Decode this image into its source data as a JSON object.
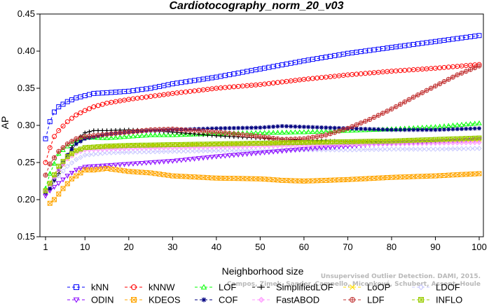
{
  "chart_data": {
    "type": "line",
    "title": "Cardiotocography_norm_20_v03",
    "xlabel": "Neighborhood size",
    "ylabel": "AP",
    "xlim": [
      1,
      100
    ],
    "ylim": [
      0.15,
      0.45
    ],
    "xticks": [
      1,
      10,
      20,
      30,
      40,
      50,
      60,
      70,
      80,
      90,
      100
    ],
    "yticks": [
      "0.15",
      "0.20",
      "0.25",
      "0.30",
      "0.35",
      "0.40",
      "0.45"
    ],
    "grid": false,
    "legend_position": "bottom",
    "series": [
      {
        "name": "kNN",
        "color": "#0000ff",
        "marker": "square",
        "points": [
          [
            1,
            0.282
          ],
          [
            2,
            0.305
          ],
          [
            3,
            0.318
          ],
          [
            4,
            0.325
          ],
          [
            6,
            0.332
          ],
          [
            8,
            0.337
          ],
          [
            10,
            0.34
          ],
          [
            12,
            0.343
          ],
          [
            15,
            0.344
          ],
          [
            20,
            0.346
          ],
          [
            25,
            0.35
          ],
          [
            30,
            0.356
          ],
          [
            40,
            0.365
          ],
          [
            50,
            0.376
          ],
          [
            60,
            0.387
          ],
          [
            70,
            0.397
          ],
          [
            80,
            0.405
          ],
          [
            90,
            0.413
          ],
          [
            100,
            0.421
          ]
        ]
      },
      {
        "name": "kNNW",
        "color": "#ff0000",
        "marker": "circle",
        "points": [
          [
            1,
            0.25
          ],
          [
            2,
            0.27
          ],
          [
            3,
            0.285
          ],
          [
            4,
            0.293
          ],
          [
            6,
            0.305
          ],
          [
            8,
            0.314
          ],
          [
            10,
            0.32
          ],
          [
            12,
            0.325
          ],
          [
            15,
            0.33
          ],
          [
            20,
            0.335
          ],
          [
            25,
            0.339
          ],
          [
            30,
            0.343
          ],
          [
            40,
            0.35
          ],
          [
            50,
            0.355
          ],
          [
            60,
            0.362
          ],
          [
            70,
            0.368
          ],
          [
            80,
            0.373
          ],
          [
            90,
            0.377
          ],
          [
            100,
            0.382
          ]
        ]
      },
      {
        "name": "LOF",
        "color": "#00ff00",
        "marker": "triangle-up",
        "points": [
          [
            1,
            0.215
          ],
          [
            2,
            0.235
          ],
          [
            4,
            0.262
          ],
          [
            6,
            0.272
          ],
          [
            8,
            0.279
          ],
          [
            10,
            0.284
          ],
          [
            15,
            0.283
          ],
          [
            20,
            0.285
          ],
          [
            25,
            0.287
          ],
          [
            30,
            0.287
          ],
          [
            40,
            0.289
          ],
          [
            50,
            0.29
          ],
          [
            60,
            0.291
          ],
          [
            70,
            0.293
          ],
          [
            80,
            0.295
          ],
          [
            90,
            0.298
          ],
          [
            100,
            0.303
          ]
        ]
      },
      {
        "name": "SimplifiedLOF",
        "color": "#000000",
        "marker": "plus",
        "points": [
          [
            1,
            0.208
          ],
          [
            2,
            0.215
          ],
          [
            4,
            0.235
          ],
          [
            6,
            0.26
          ],
          [
            8,
            0.28
          ],
          [
            10,
            0.29
          ],
          [
            12,
            0.293
          ],
          [
            15,
            0.293
          ],
          [
            20,
            0.294
          ],
          [
            25,
            0.293
          ],
          [
            30,
            0.291
          ],
          [
            40,
            0.286
          ],
          [
            50,
            0.283
          ],
          [
            60,
            0.28
          ],
          [
            70,
            0.278
          ],
          [
            80,
            0.278
          ],
          [
            90,
            0.279
          ],
          [
            100,
            0.282
          ]
        ]
      },
      {
        "name": "LoOP",
        "color": "#ffdd00",
        "marker": "x",
        "points": [
          [
            1,
            0.21
          ],
          [
            2,
            0.22
          ],
          [
            4,
            0.24
          ],
          [
            6,
            0.255
          ],
          [
            8,
            0.265
          ],
          [
            10,
            0.27
          ],
          [
            15,
            0.271
          ],
          [
            20,
            0.272
          ],
          [
            30,
            0.273
          ],
          [
            40,
            0.274
          ],
          [
            50,
            0.275
          ],
          [
            60,
            0.276
          ],
          [
            70,
            0.277
          ],
          [
            80,
            0.278
          ],
          [
            90,
            0.279
          ],
          [
            100,
            0.281
          ]
        ]
      },
      {
        "name": "LDOF",
        "color": "#c8c8ff",
        "marker": "diamond",
        "points": [
          [
            1,
            0.21
          ],
          [
            2,
            0.218
          ],
          [
            4,
            0.232
          ],
          [
            6,
            0.245
          ],
          [
            8,
            0.254
          ],
          [
            10,
            0.26
          ],
          [
            15,
            0.263
          ],
          [
            20,
            0.264
          ],
          [
            30,
            0.265
          ],
          [
            40,
            0.266
          ],
          [
            50,
            0.266
          ],
          [
            60,
            0.267
          ],
          [
            70,
            0.267
          ],
          [
            80,
            0.268
          ],
          [
            90,
            0.268
          ],
          [
            100,
            0.269
          ]
        ]
      },
      {
        "name": "ODIN",
        "color": "#8800ff",
        "marker": "triangle-down",
        "points": [
          [
            1,
            0.205
          ],
          [
            2,
            0.212
          ],
          [
            4,
            0.222
          ],
          [
            6,
            0.232
          ],
          [
            8,
            0.24
          ],
          [
            10,
            0.244
          ],
          [
            15,
            0.246
          ],
          [
            20,
            0.248
          ],
          [
            30,
            0.252
          ],
          [
            40,
            0.258
          ],
          [
            50,
            0.263
          ],
          [
            60,
            0.268
          ],
          [
            70,
            0.272
          ],
          [
            80,
            0.276
          ],
          [
            90,
            0.278
          ],
          [
            100,
            0.281
          ]
        ]
      },
      {
        "name": "KDEOS",
        "color": "#ffa500",
        "marker": "square-x",
        "points": [
          [
            2,
            0.195
          ],
          [
            3,
            0.2
          ],
          [
            5,
            0.215
          ],
          [
            7,
            0.228
          ],
          [
            9,
            0.236
          ],
          [
            10,
            0.24
          ],
          [
            12,
            0.24
          ],
          [
            15,
            0.242
          ],
          [
            20,
            0.238
          ],
          [
            25,
            0.236
          ],
          [
            30,
            0.232
          ],
          [
            40,
            0.229
          ],
          [
            50,
            0.228
          ],
          [
            55,
            0.226
          ],
          [
            60,
            0.225
          ],
          [
            70,
            0.227
          ],
          [
            80,
            0.23
          ],
          [
            90,
            0.232
          ],
          [
            100,
            0.235
          ]
        ]
      },
      {
        "name": "COF",
        "color": "#000080",
        "marker": "star",
        "points": [
          [
            1,
            0.21
          ],
          [
            2,
            0.215
          ],
          [
            4,
            0.24
          ],
          [
            6,
            0.26
          ],
          [
            8,
            0.275
          ],
          [
            10,
            0.282
          ],
          [
            15,
            0.288
          ],
          [
            20,
            0.291
          ],
          [
            25,
            0.293
          ],
          [
            30,
            0.294
          ],
          [
            40,
            0.296
          ],
          [
            50,
            0.297
          ],
          [
            55,
            0.299
          ],
          [
            60,
            0.298
          ],
          [
            70,
            0.296
          ],
          [
            80,
            0.294
          ],
          [
            90,
            0.294
          ],
          [
            100,
            0.296
          ]
        ]
      },
      {
        "name": "FastABOD",
        "color": "#ff99ff",
        "marker": "diamond-filled",
        "points": [
          [
            1,
            0.212
          ],
          [
            2,
            0.22
          ],
          [
            4,
            0.24
          ],
          [
            6,
            0.255
          ],
          [
            8,
            0.263
          ],
          [
            10,
            0.267
          ],
          [
            15,
            0.268
          ],
          [
            20,
            0.269
          ],
          [
            30,
            0.27
          ],
          [
            40,
            0.271
          ],
          [
            50,
            0.272
          ],
          [
            60,
            0.273
          ],
          [
            70,
            0.274
          ],
          [
            80,
            0.275
          ],
          [
            90,
            0.276
          ],
          [
            100,
            0.277
          ]
        ]
      },
      {
        "name": "LDF",
        "color": "#c03030",
        "marker": "circle-plus",
        "points": [
          [
            1,
            0.233
          ],
          [
            2,
            0.248
          ],
          [
            4,
            0.265
          ],
          [
            6,
            0.275
          ],
          [
            8,
            0.282
          ],
          [
            10,
            0.285
          ],
          [
            15,
            0.288
          ],
          [
            20,
            0.291
          ],
          [
            25,
            0.294
          ],
          [
            30,
            0.295
          ],
          [
            40,
            0.291
          ],
          [
            50,
            0.285
          ],
          [
            55,
            0.281
          ],
          [
            60,
            0.282
          ],
          [
            65,
            0.287
          ],
          [
            70,
            0.296
          ],
          [
            75,
            0.308
          ],
          [
            80,
            0.322
          ],
          [
            85,
            0.338
          ],
          [
            90,
            0.353
          ],
          [
            95,
            0.368
          ],
          [
            100,
            0.38
          ]
        ]
      },
      {
        "name": "INFLO",
        "color": "#99cc00",
        "marker": "square-star",
        "points": [
          [
            1,
            0.212
          ],
          [
            2,
            0.222
          ],
          [
            4,
            0.245
          ],
          [
            6,
            0.258
          ],
          [
            8,
            0.266
          ],
          [
            10,
            0.27
          ],
          [
            15,
            0.272
          ],
          [
            20,
            0.273
          ],
          [
            30,
            0.274
          ],
          [
            40,
            0.275
          ],
          [
            50,
            0.276
          ],
          [
            60,
            0.277
          ],
          [
            70,
            0.278
          ],
          [
            80,
            0.279
          ],
          [
            90,
            0.281
          ],
          [
            100,
            0.283
          ]
        ]
      }
    ],
    "legend_rows": [
      [
        "kNN",
        "kNNW",
        "LOF",
        "SimplifiedLOF",
        "LoOP",
        "LDOF"
      ],
      [
        "ODIN",
        "KDEOS",
        "COF",
        "FastABOD",
        "LDF",
        "INFLO"
      ]
    ]
  },
  "watermark": [
    "Campos, Zimek, Sander, Campello, Micenková, Schubert, Assent, Houle",
    "Unsupervised Outlier Detection. DAMI, 2015."
  ]
}
